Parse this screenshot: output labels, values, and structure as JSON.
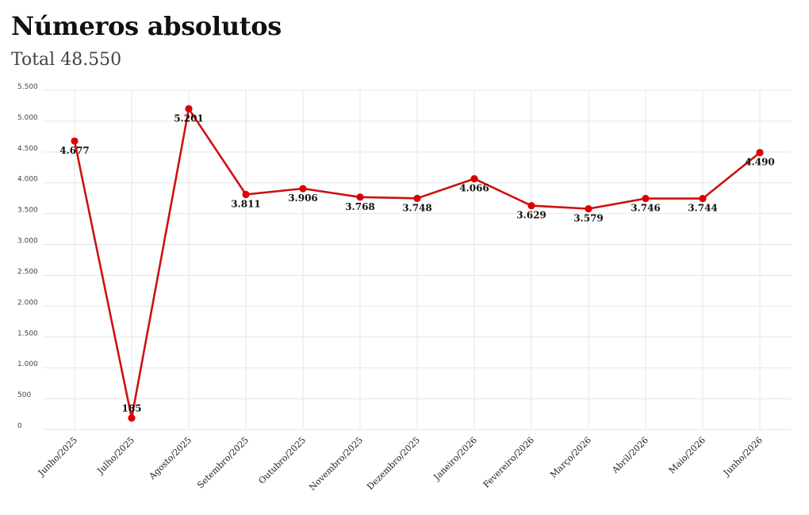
{
  "header": {
    "title": "Números absolutos",
    "subtitle": "Total 48.550"
  },
  "colors": {
    "line": "#cc1111",
    "point": "#dd0000",
    "grid": "#e6e6e6"
  },
  "chart_data": {
    "type": "line",
    "title": "Números absolutos",
    "subtitle": "Total 48.550",
    "categories": [
      "Junho/2025",
      "Julho/2025",
      "Agosto/2025",
      "Setembro/2025",
      "Outubro/2025",
      "Novembro/2025",
      "Dezembro/2025",
      "Janeiro/2026",
      "Fevereiro/2026",
      "Março/2026",
      "Abril/2026",
      "Maio/2026",
      "Junho/2026"
    ],
    "values": [
      4677,
      185,
      5201,
      3811,
      3906,
      3768,
      3748,
      4066,
      3629,
      3579,
      3746,
      3744,
      4490
    ],
    "data_labels": [
      "4.677",
      "185",
      "5.201",
      "3.811",
      "3.906",
      "3.768",
      "3.748",
      "4.066",
      "3.629",
      "3.579",
      "3.746",
      "3.744",
      "4.490"
    ],
    "y_ticks": [
      0,
      500,
      1000,
      1500,
      2000,
      2500,
      3000,
      3500,
      4000,
      4500,
      5000,
      5500
    ],
    "y_tick_labels": [
      "0",
      "500",
      "1.000",
      "1.500",
      "2.000",
      "2.500",
      "3.000",
      "3.500",
      "4.000",
      "4.500",
      "5.000",
      "5.500"
    ],
    "ylim": [
      0,
      5500
    ],
    "grid": true,
    "legend": "none"
  }
}
